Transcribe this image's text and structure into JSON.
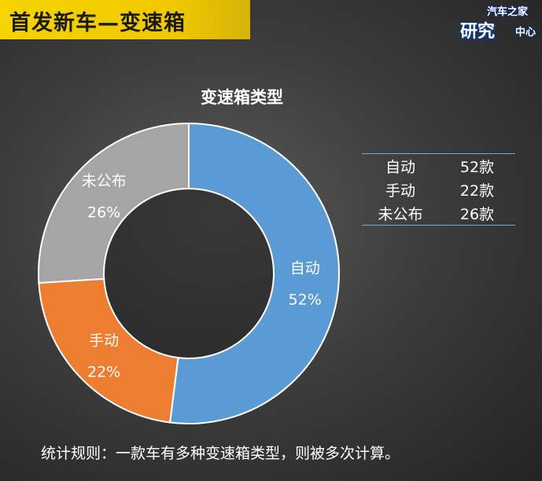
{
  "header": {
    "title": "首发新车—变速箱",
    "logo_line1": "汽车之家",
    "logo_line2": "研究",
    "logo_line3": "中心"
  },
  "chart_data": {
    "type": "pie",
    "style": "donut",
    "title": "变速箱类型",
    "categories": [
      "自动",
      "手动",
      "未公布"
    ],
    "values": [
      52,
      22,
      26
    ],
    "percent_labels": [
      "52%",
      "22%",
      "26%"
    ],
    "colors": [
      "#5b9bd5",
      "#ed7d31",
      "#a5a5a5"
    ],
    "legend_table": [
      {
        "name": "自动",
        "count": "52款"
      },
      {
        "name": "手动",
        "count": "22款"
      },
      {
        "name": "未公布",
        "count": "26款"
      }
    ]
  },
  "footnote": "统计规则：一款车有多种变速箱类型，则被多次计算。"
}
